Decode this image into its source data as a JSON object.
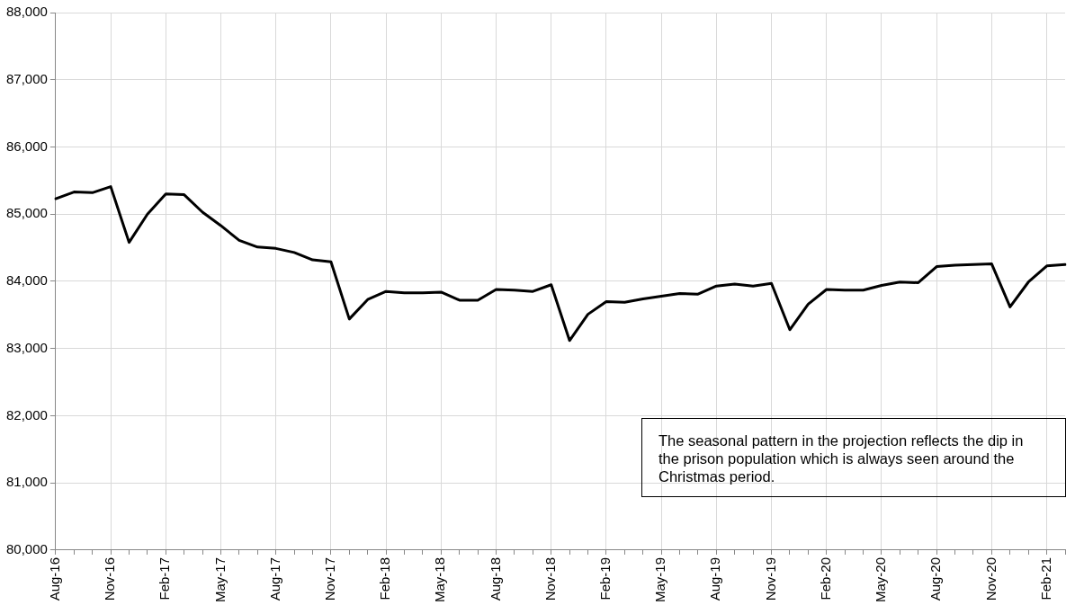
{
  "chart_data": {
    "type": "line",
    "categories": [
      "Aug-16",
      null,
      null,
      "Nov-16",
      null,
      null,
      "Feb-17",
      null,
      null,
      "May-17",
      null,
      null,
      "Aug-17",
      null,
      null,
      "Nov-17",
      null,
      null,
      "Feb-18",
      null,
      null,
      "May-18",
      null,
      null,
      "Aug-18",
      null,
      null,
      "Nov-18",
      null,
      null,
      "Feb-19",
      null,
      null,
      "May-19",
      null,
      null,
      "Aug-19",
      null,
      null,
      "Nov-19",
      null,
      null,
      "Feb-20",
      null,
      null,
      "May-20",
      null,
      null,
      "Aug-20",
      null,
      null,
      "Nov-20",
      null,
      null,
      "Feb-21",
      null
    ],
    "series": [
      {
        "color": "#000000",
        "values": [
          85230,
          85330,
          85320,
          85410,
          84580,
          85000,
          85300,
          85290,
          85030,
          84830,
          84610,
          84510,
          84490,
          84430,
          84320,
          84290,
          83440,
          83730,
          83850,
          83830,
          83830,
          83840,
          83720,
          83720,
          83880,
          83870,
          83850,
          83950,
          83120,
          83510,
          83700,
          83690,
          83740,
          83780,
          83820,
          83810,
          83930,
          83960,
          83930,
          83970,
          83280,
          83660,
          83880,
          83870,
          83870,
          83940,
          83990,
          83980,
          84220,
          84240,
          84250,
          84260,
          83620,
          83990,
          84230,
          84250
        ]
      }
    ],
    "ylim": [
      80000,
      88000
    ],
    "yticks": [
      {
        "value": 80000,
        "label": "80,000"
      },
      {
        "value": 81000,
        "label": "81,000"
      },
      {
        "value": 82000,
        "label": "82,000"
      },
      {
        "value": 83000,
        "label": "83,000"
      },
      {
        "value": 84000,
        "label": "84,000"
      },
      {
        "value": 85000,
        "label": "85,000"
      },
      {
        "value": 86000,
        "label": "86,000"
      },
      {
        "value": 87000,
        "label": "87,000"
      },
      {
        "value": 88000,
        "label": "88,000"
      }
    ],
    "grid": true,
    "legend": false,
    "marker": "none",
    "line_style": "solid",
    "annotations": [
      "The seasonal pattern in the projection reflects the dip in the prison population which is always seen around the Christmas period."
    ]
  }
}
